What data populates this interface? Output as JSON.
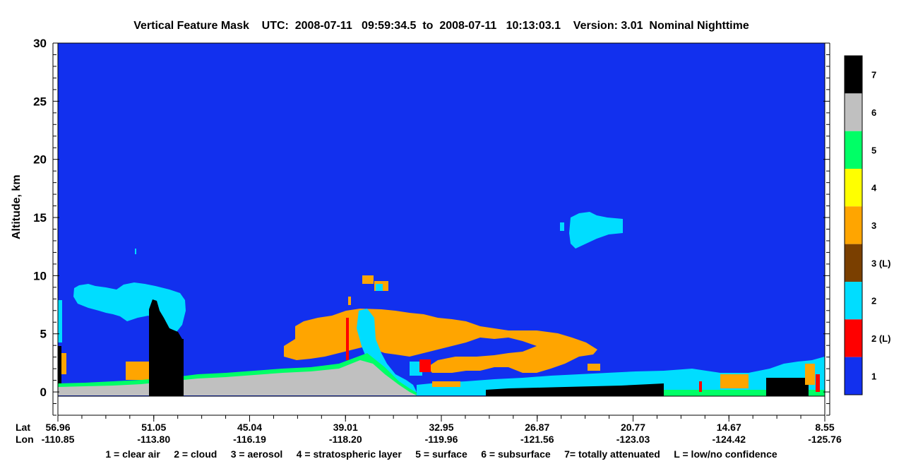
{
  "chart_data": {
    "type": "heatmap",
    "title": "Vertical Feature Mask    UTC:  2008-07-11   09:59:34.5  to  2008-07-11   10:13:03.1    Version: 3.01  Nominal Nighttime",
    "ylabel": "Altitude, km",
    "ylim": [
      -2,
      30
    ],
    "y_ticks": [
      "0",
      "5",
      "10",
      "15",
      "20",
      "25",
      "30"
    ],
    "x_axis": {
      "row1_label": "Lat",
      "row2_label": "Lon",
      "lat_ticks": [
        "56.96",
        "51.05",
        "45.04",
        "39.01",
        "32.95",
        "26.87",
        "20.77",
        "14.67",
        "8.55"
      ],
      "lon_ticks": [
        "-110.85",
        "-113.80",
        "-116.19",
        "-118.20",
        "-119.96",
        "-121.56",
        "-123.03",
        "-124.42",
        "-125.76"
      ]
    },
    "colorbar": {
      "labels": [
        "7",
        "6",
        "5",
        "4",
        "3",
        "3 (L)",
        "2",
        "2 (L)",
        "1"
      ],
      "colors": [
        "#000000",
        "#c0c0c0",
        "#00ff66",
        "#ffff00",
        "#ffa500",
        "#7a3f00",
        "#00ddff",
        "#ff0000",
        "#1230ee"
      ]
    },
    "legend_note": "1 = clear air     2 = cloud     3 = aerosol     4 = stratospheric layer     5 = surface     6 = subsurface     7= totally attenuated     L = low/no confidence",
    "features": [
      {
        "class": "2",
        "x_range": [
          0.02,
          0.17
        ],
        "alt_range": [
          5.5,
          8.5
        ]
      },
      {
        "class": "2",
        "x_range": [
          0.09,
          0.17
        ],
        "alt_range": [
          5.0,
          8.0
        ]
      },
      {
        "class": "7",
        "x_range": [
          0.12,
          0.165
        ],
        "alt_range": [
          -0.5,
          7.8
        ]
      },
      {
        "class": "3",
        "x_range": [
          0.09,
          0.12
        ],
        "alt_range": [
          1.0,
          2.5
        ]
      },
      {
        "class": "3",
        "x_range": [
          0.3,
          0.71
        ],
        "alt_range": [
          1.5,
          6.5
        ]
      },
      {
        "class": "3",
        "x_range": [
          0.4,
          0.43
        ],
        "alt_range": [
          9.0,
          10.0
        ]
      },
      {
        "class": "2",
        "x_range": [
          0.4,
          0.44
        ],
        "alt_range": [
          3.0,
          6.5
        ]
      },
      {
        "class": "2L",
        "x_range": [
          0.44,
          0.46
        ],
        "alt_range": [
          1.5,
          2.5
        ]
      },
      {
        "class": "2",
        "x_range": [
          0.66,
          0.735
        ],
        "alt_range": [
          12.5,
          15.3
        ]
      },
      {
        "class": "6",
        "x_range": [
          0.0,
          0.47
        ],
        "alt_range": [
          -0.5,
          1.0
        ]
      },
      {
        "class": "7",
        "x_range": [
          0.55,
          0.78
        ],
        "alt_range": [
          -0.5,
          0.5
        ]
      },
      {
        "class": "2",
        "x_range": [
          0.47,
          1.0
        ],
        "alt_range": [
          0.0,
          2.0
        ]
      },
      {
        "class": "5",
        "x_range": [
          0.78,
          1.0
        ],
        "alt_range": [
          -0.5,
          0.0
        ]
      }
    ]
  }
}
